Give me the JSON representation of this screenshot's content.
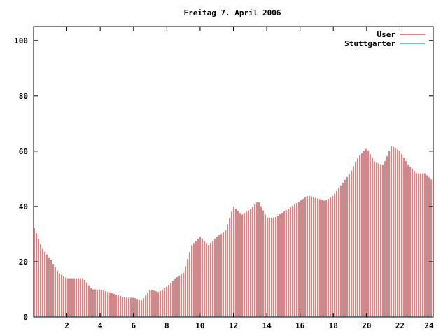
{
  "chart_data": {
    "type": "bar",
    "title": "Freitag 7. April 2006",
    "xlabel": "",
    "ylabel": "",
    "xlim": [
      0,
      24
    ],
    "ylim": [
      0,
      105
    ],
    "x_ticks": [
      2,
      4,
      6,
      8,
      10,
      12,
      14,
      16,
      18,
      20,
      22,
      24
    ],
    "x_tick_labels": [
      "2",
      "4",
      "6",
      "8",
      "10",
      "12",
      "14",
      "16",
      "18",
      "20",
      "22",
      "24"
    ],
    "y_ticks": [
      0,
      20,
      40,
      60,
      80,
      100
    ],
    "y_tick_labels": [
      "0",
      "20",
      "40",
      "60",
      "80",
      "100"
    ],
    "grid": false,
    "legend_position": "top-right",
    "series": [
      {
        "name": "User",
        "color": "#cc0000",
        "style": "impulses",
        "points": [
          [
            0,
            33
          ],
          [
            0.5,
            25
          ],
          [
            1,
            21
          ],
          [
            1.5,
            16
          ],
          [
            2,
            14
          ],
          [
            2.5,
            14
          ],
          [
            3,
            14
          ],
          [
            3.5,
            10
          ],
          [
            4,
            10
          ],
          [
            4.5,
            9
          ],
          [
            5,
            8
          ],
          [
            5.5,
            7
          ],
          [
            6,
            7
          ],
          [
            6.5,
            6
          ],
          [
            7,
            10
          ],
          [
            7.5,
            9
          ],
          [
            8,
            11
          ],
          [
            8.5,
            14
          ],
          [
            9,
            16
          ],
          [
            9.5,
            26
          ],
          [
            10,
            29
          ],
          [
            10.5,
            26
          ],
          [
            11,
            29
          ],
          [
            11.5,
            31
          ],
          [
            12,
            40
          ],
          [
            12.5,
            37
          ],
          [
            13,
            39
          ],
          [
            13.5,
            42
          ],
          [
            14,
            36
          ],
          [
            14.5,
            36
          ],
          [
            15,
            38
          ],
          [
            15.5,
            40
          ],
          [
            16,
            42
          ],
          [
            16.5,
            44
          ],
          [
            17,
            43
          ],
          [
            17.5,
            42
          ],
          [
            18,
            44
          ],
          [
            18.5,
            48
          ],
          [
            19,
            52
          ],
          [
            19.5,
            58
          ],
          [
            20,
            61
          ],
          [
            20.5,
            56
          ],
          [
            21,
            55
          ],
          [
            21.5,
            62
          ],
          [
            22,
            60
          ],
          [
            22.5,
            55
          ],
          [
            23,
            52
          ],
          [
            23.5,
            52
          ],
          [
            24,
            49
          ]
        ]
      },
      {
        "name": "Stuttgarter",
        "color": "#008b8b",
        "style": "impulses",
        "points": [
          [
            0,
            0.5
          ],
          [
            11,
            0.5
          ],
          [
            12,
            0.5
          ],
          [
            16,
            0.5
          ],
          [
            20,
            0.5
          ],
          [
            21,
            0.5
          ],
          [
            22,
            0.5
          ],
          [
            24,
            0.5
          ]
        ]
      }
    ]
  }
}
